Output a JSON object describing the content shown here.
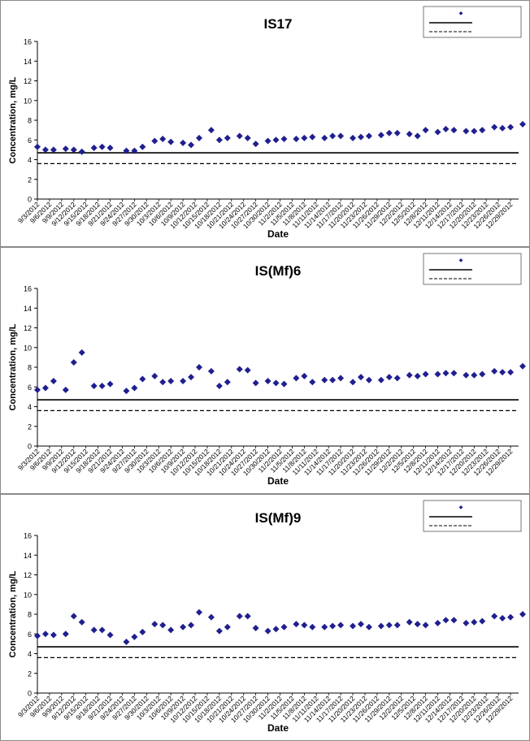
{
  "chart_data": [
    {
      "type": "scatter",
      "title": "IS17",
      "xlabel": "Date",
      "ylabel": "Concentration, mg/L",
      "ylim": [
        0,
        16
      ],
      "yticks": [
        0,
        2,
        4,
        6,
        8,
        10,
        12,
        14,
        16
      ],
      "xlim": [
        "9/3/2012",
        "12/31/2012"
      ],
      "xtick_labels": [
        "9/3/2012",
        "9/6/2012",
        "9/9/2012",
        "9/12/2012",
        "9/15/2012",
        "9/18/2012",
        "9/21/2012",
        "9/24/2012",
        "9/27/2012",
        "9/30/2012",
        "10/3/2012",
        "10/6/2012",
        "10/9/2012",
        "10/12/2012",
        "10/15/2012",
        "10/18/2012",
        "10/21/2012",
        "10/24/2012",
        "10/27/2012",
        "10/30/2012",
        "11/2/2012",
        "11/5/2012",
        "11/8/2012",
        "11/11/2012",
        "11/14/2012",
        "11/17/2012",
        "11/20/2012",
        "11/23/2012",
        "11/26/2012",
        "11/29/2012",
        "12/2/2012",
        "12/5/2012",
        "12/8/2012",
        "12/11/2012",
        "12/14/2012",
        "12/17/2012",
        "12/20/2012",
        "12/23/2012",
        "12/26/2012",
        "12/29/2012"
      ],
      "legend_position": "top-right",
      "legend_readable": false,
      "series": [
        {
          "marker": "diamond",
          "color": "#1f1f8f",
          "points": [
            [
              "9/3/2012",
              5.3
            ],
            [
              "9/5/2012",
              5.0
            ],
            [
              "9/7/2012",
              5.0
            ],
            [
              "9/10/2012",
              5.1
            ],
            [
              "9/12/2012",
              5.0
            ],
            [
              "9/14/2012",
              4.8
            ],
            [
              "9/17/2012",
              5.2
            ],
            [
              "9/19/2012",
              5.3
            ],
            [
              "9/21/2012",
              5.2
            ],
            [
              "9/25/2012",
              4.9
            ],
            [
              "9/27/2012",
              4.9
            ],
            [
              "9/29/2012",
              5.3
            ],
            [
              "10/2/2012",
              5.9
            ],
            [
              "10/4/2012",
              6.1
            ],
            [
              "10/6/2012",
              5.8
            ],
            [
              "10/9/2012",
              5.7
            ],
            [
              "10/11/2012",
              5.5
            ],
            [
              "10/13/2012",
              6.2
            ],
            [
              "10/16/2012",
              7.0
            ],
            [
              "10/18/2012",
              6.0
            ],
            [
              "10/20/2012",
              6.2
            ],
            [
              "10/23/2012",
              6.4
            ],
            [
              "10/25/2012",
              6.2
            ],
            [
              "10/27/2012",
              5.6
            ],
            [
              "10/30/2012",
              5.9
            ],
            [
              "11/1/2012",
              6.0
            ],
            [
              "11/3/2012",
              6.1
            ],
            [
              "11/6/2012",
              6.1
            ],
            [
              "11/8/2012",
              6.2
            ],
            [
              "11/10/2012",
              6.3
            ],
            [
              "11/13/2012",
              6.2
            ],
            [
              "11/15/2012",
              6.4
            ],
            [
              "11/17/2012",
              6.4
            ],
            [
              "11/20/2012",
              6.2
            ],
            [
              "11/22/2012",
              6.3
            ],
            [
              "11/24/2012",
              6.4
            ],
            [
              "11/27/2012",
              6.5
            ],
            [
              "11/29/2012",
              6.7
            ],
            [
              "12/1/2012",
              6.7
            ],
            [
              "12/4/2012",
              6.6
            ],
            [
              "12/6/2012",
              6.4
            ],
            [
              "12/8/2012",
              7.0
            ],
            [
              "12/11/2012",
              6.8
            ],
            [
              "12/13/2012",
              7.1
            ],
            [
              "12/15/2012",
              7.0
            ],
            [
              "12/18/2012",
              6.9
            ],
            [
              "12/20/2012",
              6.9
            ],
            [
              "12/22/2012",
              7.0
            ],
            [
              "12/25/2012",
              7.3
            ],
            [
              "12/27/2012",
              7.2
            ],
            [
              "12/29/2012",
              7.3
            ],
            [
              "1/1/2013",
              7.6
            ]
          ]
        }
      ],
      "reference_lines": [
        {
          "value": 4.7,
          "style": "solid"
        },
        {
          "value": 3.6,
          "style": "dashed"
        }
      ]
    },
    {
      "type": "scatter",
      "title": "IS(Mf)6",
      "xlabel": "Date",
      "ylabel": "Concentration, mg/L",
      "ylim": [
        0,
        16
      ],
      "yticks": [
        0,
        2,
        4,
        6,
        8,
        10,
        12,
        14,
        16
      ],
      "xlim": [
        "9/3/2012",
        "12/31/2012"
      ],
      "xtick_labels": [
        "9/3/2012",
        "9/6/2012",
        "9/9/2012",
        "9/12/2012",
        "9/15/2012",
        "9/18/2012",
        "9/21/2012",
        "9/24/2012",
        "9/27/2012",
        "9/30/2012",
        "10/3/2012",
        "10/6/2012",
        "10/9/2012",
        "10/12/2012",
        "10/15/2012",
        "10/18/2012",
        "10/21/2012",
        "10/24/2012",
        "10/27/2012",
        "10/30/2012",
        "11/2/2012",
        "11/5/2012",
        "11/8/2012",
        "11/11/2012",
        "11/14/2012",
        "11/17/2012",
        "11/20/2012",
        "11/23/2012",
        "11/26/2012",
        "11/29/2012",
        "12/2/2012",
        "12/5/2012",
        "12/8/2012",
        "12/11/2012",
        "12/14/2012",
        "12/17/2012",
        "12/20/2012",
        "12/23/2012",
        "12/26/2012",
        "12/29/2012"
      ],
      "legend_position": "top-right",
      "legend_readable": false,
      "series": [
        {
          "marker": "diamond",
          "color": "#1f1f8f",
          "points": [
            [
              "9/3/2012",
              5.7
            ],
            [
              "9/5/2012",
              5.9
            ],
            [
              "9/7/2012",
              6.6
            ],
            [
              "9/10/2012",
              5.7
            ],
            [
              "9/12/2012",
              8.5
            ],
            [
              "9/14/2012",
              9.5
            ],
            [
              "9/17/2012",
              6.1
            ],
            [
              "9/19/2012",
              6.1
            ],
            [
              "9/21/2012",
              6.3
            ],
            [
              "9/25/2012",
              5.6
            ],
            [
              "9/27/2012",
              5.9
            ],
            [
              "9/29/2012",
              6.8
            ],
            [
              "10/2/2012",
              7.1
            ],
            [
              "10/4/2012",
              6.5
            ],
            [
              "10/6/2012",
              6.6
            ],
            [
              "10/9/2012",
              6.6
            ],
            [
              "10/11/2012",
              7.0
            ],
            [
              "10/13/2012",
              8.0
            ],
            [
              "10/16/2012",
              7.6
            ],
            [
              "10/18/2012",
              6.1
            ],
            [
              "10/20/2012",
              6.5
            ],
            [
              "10/23/2012",
              7.8
            ],
            [
              "10/25/2012",
              7.7
            ],
            [
              "10/27/2012",
              6.4
            ],
            [
              "10/30/2012",
              6.6
            ],
            [
              "11/1/2012",
              6.4
            ],
            [
              "11/3/2012",
              6.3
            ],
            [
              "11/6/2012",
              6.9
            ],
            [
              "11/8/2012",
              7.1
            ],
            [
              "11/10/2012",
              6.5
            ],
            [
              "11/13/2012",
              6.7
            ],
            [
              "11/15/2012",
              6.7
            ],
            [
              "11/17/2012",
              6.9
            ],
            [
              "11/20/2012",
              6.5
            ],
            [
              "11/22/2012",
              7.0
            ],
            [
              "11/24/2012",
              6.7
            ],
            [
              "11/27/2012",
              6.7
            ],
            [
              "11/29/2012",
              7.0
            ],
            [
              "12/1/2012",
              6.9
            ],
            [
              "12/4/2012",
              7.2
            ],
            [
              "12/6/2012",
              7.1
            ],
            [
              "12/8/2012",
              7.3
            ],
            [
              "12/11/2012",
              7.3
            ],
            [
              "12/13/2012",
              7.4
            ],
            [
              "12/15/2012",
              7.4
            ],
            [
              "12/18/2012",
              7.2
            ],
            [
              "12/20/2012",
              7.2
            ],
            [
              "12/22/2012",
              7.3
            ],
            [
              "12/25/2012",
              7.6
            ],
            [
              "12/27/2012",
              7.5
            ],
            [
              "12/29/2012",
              7.5
            ],
            [
              "1/1/2013",
              8.1
            ]
          ]
        }
      ],
      "reference_lines": [
        {
          "value": 4.7,
          "style": "solid"
        },
        {
          "value": 3.6,
          "style": "dashed"
        }
      ]
    },
    {
      "type": "scatter",
      "title": "IS(Mf)9",
      "xlabel": "Date",
      "ylabel": "Concentration, mg/L",
      "ylim": [
        0,
        16
      ],
      "yticks": [
        0,
        2,
        4,
        6,
        8,
        10,
        12,
        14,
        16
      ],
      "xlim": [
        "9/3/2012",
        "12/31/2012"
      ],
      "xtick_labels": [
        "9/3/2012",
        "9/6/2012",
        "9/9/2012",
        "9/12/2012",
        "9/15/2012",
        "9/18/2012",
        "9/21/2012",
        "9/24/2012",
        "9/27/2012",
        "9/30/2012",
        "10/3/2012",
        "10/6/2012",
        "10/9/2012",
        "10/12/2012",
        "10/15/2012",
        "10/18/2012",
        "10/21/2012",
        "10/24/2012",
        "10/27/2012",
        "10/30/2012",
        "11/2/2012",
        "11/5/2012",
        "11/8/2012",
        "11/11/2012",
        "11/14/2012",
        "11/17/2012",
        "11/20/2012",
        "11/23/2012",
        "11/26/2012",
        "11/29/2012",
        "12/2/2012",
        "12/5/2012",
        "12/8/2012",
        "12/11/2012",
        "12/14/2012",
        "12/17/2012",
        "12/20/2012",
        "12/23/2012",
        "12/26/2012",
        "12/29/2012"
      ],
      "legend_position": "top-right",
      "legend_readable": false,
      "series": [
        {
          "marker": "diamond",
          "color": "#1f1f8f",
          "points": [
            [
              "9/3/2012",
              5.8
            ],
            [
              "9/5/2012",
              6.0
            ],
            [
              "9/7/2012",
              5.9
            ],
            [
              "9/10/2012",
              6.0
            ],
            [
              "9/12/2012",
              7.8
            ],
            [
              "9/14/2012",
              7.2
            ],
            [
              "9/17/2012",
              6.4
            ],
            [
              "9/19/2012",
              6.4
            ],
            [
              "9/21/2012",
              5.9
            ],
            [
              "9/25/2012",
              5.2
            ],
            [
              "9/27/2012",
              5.7
            ],
            [
              "9/29/2012",
              6.2
            ],
            [
              "10/2/2012",
              7.0
            ],
            [
              "10/4/2012",
              6.9
            ],
            [
              "10/6/2012",
              6.4
            ],
            [
              "10/9/2012",
              6.7
            ],
            [
              "10/11/2012",
              6.9
            ],
            [
              "10/13/2012",
              8.2
            ],
            [
              "10/16/2012",
              7.7
            ],
            [
              "10/18/2012",
              6.3
            ],
            [
              "10/20/2012",
              6.7
            ],
            [
              "10/23/2012",
              7.8
            ],
            [
              "10/25/2012",
              7.8
            ],
            [
              "10/27/2012",
              6.6
            ],
            [
              "10/30/2012",
              6.3
            ],
            [
              "11/1/2012",
              6.5
            ],
            [
              "11/3/2012",
              6.7
            ],
            [
              "11/6/2012",
              7.0
            ],
            [
              "11/8/2012",
              6.9
            ],
            [
              "11/10/2012",
              6.7
            ],
            [
              "11/13/2012",
              6.7
            ],
            [
              "11/15/2012",
              6.8
            ],
            [
              "11/17/2012",
              6.9
            ],
            [
              "11/20/2012",
              6.8
            ],
            [
              "11/22/2012",
              7.0
            ],
            [
              "11/24/2012",
              6.7
            ],
            [
              "11/27/2012",
              6.8
            ],
            [
              "11/29/2012",
              6.9
            ],
            [
              "12/1/2012",
              6.9
            ],
            [
              "12/4/2012",
              7.2
            ],
            [
              "12/6/2012",
              7.0
            ],
            [
              "12/8/2012",
              6.9
            ],
            [
              "12/11/2012",
              7.1
            ],
            [
              "12/13/2012",
              7.4
            ],
            [
              "12/15/2012",
              7.4
            ],
            [
              "12/18/2012",
              7.1
            ],
            [
              "12/20/2012",
              7.2
            ],
            [
              "12/22/2012",
              7.3
            ],
            [
              "12/25/2012",
              7.8
            ],
            [
              "12/27/2012",
              7.6
            ],
            [
              "12/29/2012",
              7.7
            ],
            [
              "1/1/2013",
              8.0
            ]
          ]
        }
      ],
      "reference_lines": [
        {
          "value": 4.7,
          "style": "solid"
        },
        {
          "value": 3.6,
          "style": "dashed"
        }
      ]
    }
  ]
}
